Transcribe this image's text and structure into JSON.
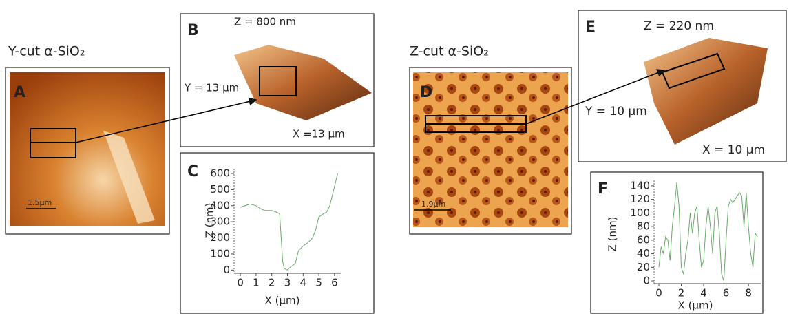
{
  "labels": {
    "y_cut": "Y-cut α-SiO₂",
    "z_cut": "Z-cut α-SiO₂",
    "panel_a": "A",
    "panel_b": "B",
    "panel_c": "C",
    "panel_d": "D",
    "panel_e": "E",
    "panel_f": "F",
    "scale_a": "1.5µm",
    "scale_d": "1.9µm",
    "b_z": "Z = 800 nm",
    "b_y": "Y = 13 µm",
    "b_x": "X =13 µm",
    "e_z": "Z = 220 nm",
    "e_y": "Y = 10 µm",
    "e_x": "X = 10 µm"
  },
  "chart_data": [
    {
      "type": "line",
      "x_label": "X (µm)",
      "y_label": "Z (nm)",
      "x": [
        0,
        0.3,
        0.6,
        1,
        1.3,
        1.6,
        2,
        2.3,
        2.5,
        2.6,
        2.7,
        2.8,
        3.0,
        3.2,
        3.5,
        3.7,
        4.0,
        4.3,
        4.6,
        4.8,
        5.0,
        5.3,
        5.5,
        5.7,
        5.9,
        6.1,
        6.2
      ],
      "series": [
        {
          "name": "C",
          "color": "#6aa86a",
          "values": [
            390,
            400,
            410,
            400,
            380,
            370,
            370,
            360,
            350,
            200,
            50,
            10,
            0,
            20,
            40,
            120,
            150,
            170,
            200,
            250,
            330,
            350,
            360,
            400,
            480,
            560,
            600
          ]
        }
      ],
      "xlim": [
        -0.4,
        6.4
      ],
      "xticks": [
        0,
        1,
        2,
        3,
        4,
        5,
        6
      ],
      "ylim": [
        -20,
        630
      ],
      "yticks": [
        0,
        100,
        200,
        300,
        400,
        500,
        600
      ]
    },
    {
      "type": "line",
      "x_label": "X (µm)",
      "y_label": "Z (nm)",
      "x": [
        0,
        0.2,
        0.4,
        0.6,
        0.8,
        1.0,
        1.2,
        1.4,
        1.6,
        1.8,
        2.0,
        2.2,
        2.4,
        2.6,
        2.8,
        3.0,
        3.2,
        3.4,
        3.6,
        3.8,
        4.0,
        4.2,
        4.4,
        4.6,
        4.8,
        5.0,
        5.2,
        5.4,
        5.6,
        5.8,
        6.0,
        6.2,
        6.4,
        6.6,
        6.8,
        7.0,
        7.2,
        7.4,
        7.6,
        7.8,
        8.0,
        8.2,
        8.4,
        8.6,
        8.8
      ],
      "series": [
        {
          "name": "F",
          "color": "#6aa86a",
          "values": [
            20,
            50,
            40,
            65,
            60,
            30,
            80,
            110,
            145,
            110,
            20,
            10,
            40,
            60,
            100,
            70,
            100,
            110,
            60,
            20,
            30,
            80,
            110,
            80,
            40,
            100,
            110,
            70,
            10,
            0,
            60,
            110,
            120,
            115,
            120,
            125,
            130,
            125,
            80,
            130,
            80,
            40,
            20,
            70,
            65
          ]
        }
      ],
      "xlim": [
        -0.43,
        9.1
      ],
      "xticks": [
        0,
        2,
        4,
        6,
        8
      ],
      "ylim": [
        -4,
        148
      ],
      "yticks": [
        0,
        20,
        40,
        60,
        80,
        100,
        120,
        140
      ]
    }
  ]
}
